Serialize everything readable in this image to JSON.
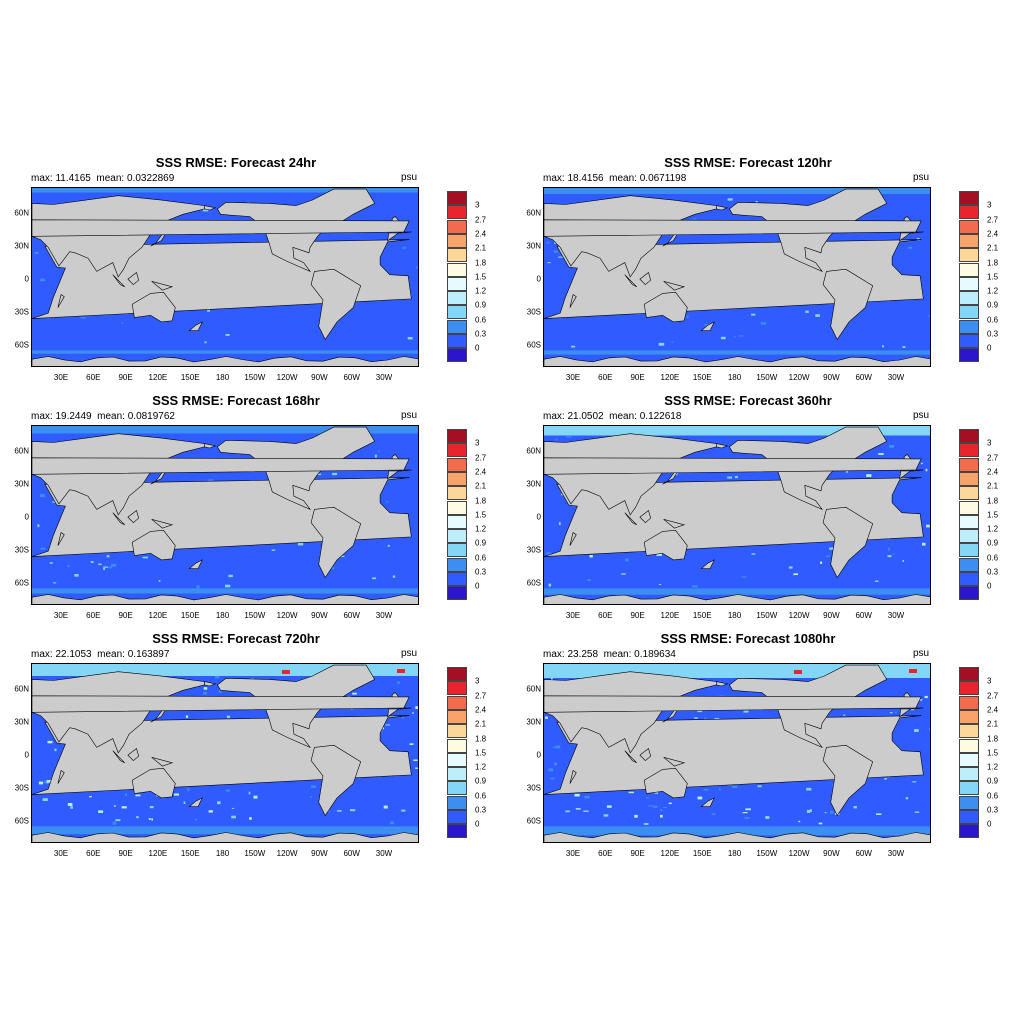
{
  "panels": [
    {
      "title": "SSS RMSE: Forecast 24hr",
      "stats": "max: 11.4165  mean: 0.0322869",
      "units": "psu",
      "anomaly_level": 0.05
    },
    {
      "title": "SSS RMSE: Forecast 120hr",
      "stats": "max: 18.4156  mean: 0.0671198",
      "units": "psu",
      "anomaly_level": 0.2
    },
    {
      "title": "SSS RMSE: Forecast 168hr",
      "stats": "max: 19.2449  mean: 0.0819762",
      "units": "psu",
      "anomaly_level": 0.35
    },
    {
      "title": "SSS RMSE: Forecast 360hr",
      "stats": "max: 21.0502  mean: 0.122618",
      "units": "psu",
      "anomaly_level": 0.55
    },
    {
      "title": "SSS RMSE: Forecast 720hr",
      "stats": "max: 22.1053  mean: 0.163897",
      "units": "psu",
      "anomaly_level": 0.8
    },
    {
      "title": "SSS RMSE: Forecast 1080hr",
      "stats": "max: 23.258  mean: 0.189634",
      "units": "psu",
      "anomaly_level": 1.0
    }
  ],
  "lon_ticks": [
    "30E",
    "60E",
    "90E",
    "120E",
    "150E",
    "180",
    "150W",
    "120W",
    "90W",
    "60W",
    "30W"
  ],
  "lat_ticks": [
    "60N",
    "30N",
    "0",
    "30S",
    "60S"
  ],
  "colorbar": {
    "labels": [
      "3",
      "2.7",
      "2.4",
      "2.1",
      "1.8",
      "1.5",
      "1.2",
      "0.9",
      "0.6",
      "0.3",
      "0"
    ],
    "colors": [
      "#a50f24",
      "#e8252c",
      "#f36b4f",
      "#f9a36b",
      "#fdd69a",
      "#fffbe0",
      "#e6fbff",
      "#bdeefc",
      "#84d6f6",
      "#3c8ff0",
      "#2f5bff",
      "#2a16cc"
    ]
  },
  "colors": {
    "ocean": "#2f5bff",
    "land": "#cccccc",
    "ice": "#ffffff",
    "coast": "#000000"
  }
}
